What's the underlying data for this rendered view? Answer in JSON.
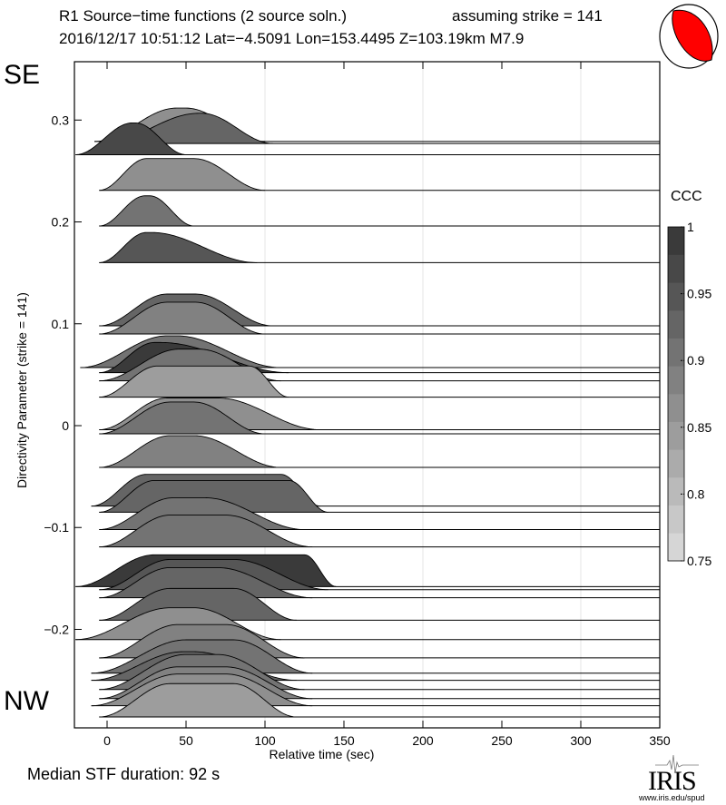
{
  "header": {
    "title": "R1 Source−time functions (2 source soln.)",
    "strike_note": "assuming strike = 141",
    "event_line": "2016/12/17 10:51:12  Lat=−4.5091 Lon=153.4495  Z=103.19km  M7.9"
  },
  "labels": {
    "top": "SE",
    "bottom": "NW"
  },
  "footer": {
    "median": "Median STF duration: 92 s",
    "logo": "IRIS",
    "logo_url_text": "www.iris.edu/spud"
  },
  "colors": {
    "beachball": "#ff0000",
    "ccc_min_gray": "#dddddd",
    "ccc_max_gray": "#333333",
    "grid": "#e4e4e4"
  },
  "chart_data": {
    "type": "area",
    "xlabel": "Relative time (sec)",
    "ylabel": "Directivity Parameter (strike = 141)",
    "xlim": [
      -20,
      350
    ],
    "ylim": [
      -0.295,
      0.33
    ],
    "xticks": [
      0,
      50,
      100,
      150,
      200,
      250,
      300,
      350
    ],
    "yticks": [
      -0.2,
      -0.1,
      0,
      0.1,
      0.2,
      0.3
    ],
    "ytick_labels": [
      "−0.2",
      "−0.1",
      "0",
      "0.1",
      "0.2",
      "0.3"
    ],
    "grid_x": [
      100,
      200,
      300
    ],
    "colorbar": {
      "title": "CCC",
      "range": [
        0.75,
        1
      ],
      "ticks": [
        "0.75",
        "0.8",
        "0.85",
        "0.9",
        "0.95",
        "1"
      ],
      "steps": 12,
      "placement": "right"
    },
    "traces": [
      {
        "d": 0.279,
        "onset": -8,
        "plateau": [
          44,
          50
        ],
        "end": 100,
        "amp": 1.05,
        "ccc": 0.87
      },
      {
        "d": 0.277,
        "onset": -3,
        "plateau": [
          58,
          60
        ],
        "end": 105,
        "amp": 0.95,
        "ccc": 0.93
      },
      {
        "d": 0.266,
        "onset": -20,
        "plateau": [
          16,
          18
        ],
        "end": 50,
        "amp": 1.0,
        "ccc": 0.96
      },
      {
        "d": 0.231,
        "onset": -5,
        "plateau": [
          25,
          55
        ],
        "end": 100,
        "amp": 1.0,
        "ccc": 0.87
      },
      {
        "d": 0.196,
        "onset": -5,
        "plateau": [
          24,
          27
        ],
        "end": 55,
        "amp": 0.95,
        "ccc": 0.9
      },
      {
        "d": 0.16,
        "onset": -5,
        "plateau": [
          25,
          28
        ],
        "end": 95,
        "amp": 0.95,
        "ccc": 0.95
      },
      {
        "d": 0.098,
        "onset": -5,
        "plateau": [
          38,
          56
        ],
        "end": 105,
        "amp": 1.0,
        "ccc": 0.93
      },
      {
        "d": 0.09,
        "onset": -5,
        "plateau": [
          38,
          56
        ],
        "end": 100,
        "amp": 1.0,
        "ccc": 0.88
      },
      {
        "d": 0.057,
        "onset": -17,
        "plateau": [
          38,
          44
        ],
        "end": 110,
        "amp": 1.0,
        "ccc": 0.9
      },
      {
        "d": 0.052,
        "onset": -5,
        "plateau": [
          30,
          34
        ],
        "end": 115,
        "amp": 0.95,
        "ccc": 0.98
      },
      {
        "d": 0.044,
        "onset": -5,
        "plateau": [
          46,
          58
        ],
        "end": 110,
        "amp": 1.0,
        "ccc": 0.9
      },
      {
        "d": 0.028,
        "onset": -5,
        "plateau": [
          32,
          90
        ],
        "end": 115,
        "amp": 0.98,
        "ccc": 0.85
      },
      {
        "d": -0.004,
        "onset": -5,
        "plateau": [
          38,
          70
        ],
        "end": 135,
        "amp": 1.0,
        "ccc": 0.87
      },
      {
        "d": -0.008,
        "onset": -5,
        "plateau": [
          40,
          55
        ],
        "end": 100,
        "amp": 1.0,
        "ccc": 0.9
      },
      {
        "d": -0.041,
        "onset": -5,
        "plateau": [
          40,
          55
        ],
        "end": 110,
        "amp": 1.0,
        "ccc": 0.88
      },
      {
        "d": -0.079,
        "onset": -10,
        "plateau": [
          25,
          110
        ],
        "end": 135,
        "amp": 1.0,
        "ccc": 0.93
      },
      {
        "d": -0.085,
        "onset": -5,
        "plateau": [
          30,
          115
        ],
        "end": 140,
        "amp": 1.0,
        "ccc": 0.93
      },
      {
        "d": -0.102,
        "onset": -5,
        "plateau": [
          42,
          62
        ],
        "end": 125,
        "amp": 1.0,
        "ccc": 0.9
      },
      {
        "d": -0.119,
        "onset": -5,
        "plateau": [
          40,
          75
        ],
        "end": 130,
        "amp": 1.0,
        "ccc": 0.9
      },
      {
        "d": -0.158,
        "onset": -20,
        "plateau": [
          30,
          125
        ],
        "end": 145,
        "amp": 1.0,
        "ccc": 0.99
      },
      {
        "d": -0.161,
        "onset": -5,
        "plateau": [
          40,
          80
        ],
        "end": 140,
        "amp": 0.95,
        "ccc": 0.95
      },
      {
        "d": -0.169,
        "onset": -5,
        "plateau": [
          40,
          70
        ],
        "end": 130,
        "amp": 0.95,
        "ccc": 0.92
      },
      {
        "d": -0.191,
        "onset": -5,
        "plateau": [
          40,
          80
        ],
        "end": 120,
        "amp": 1.0,
        "ccc": 0.93
      },
      {
        "d": -0.21,
        "onset": -20,
        "plateau": [
          40,
          55
        ],
        "end": 110,
        "amp": 1.0,
        "ccc": 0.87
      },
      {
        "d": -0.228,
        "onset": -5,
        "plateau": [
          45,
          75
        ],
        "end": 125,
        "amp": 1.05,
        "ccc": 0.88
      },
      {
        "d": -0.243,
        "onset": -10,
        "plateau": [
          50,
          80
        ],
        "end": 130,
        "amp": 1.05,
        "ccc": 0.9
      },
      {
        "d": -0.25,
        "onset": -10,
        "plateau": [
          48,
          55
        ],
        "end": 120,
        "amp": 0.9,
        "ccc": 0.92
      },
      {
        "d": -0.259,
        "onset": -5,
        "plateau": [
          50,
          70
        ],
        "end": 125,
        "amp": 1.1,
        "ccc": 0.9
      },
      {
        "d": -0.268,
        "onset": -5,
        "plateau": [
          45,
          75
        ],
        "end": 130,
        "amp": 1.0,
        "ccc": 0.88
      },
      {
        "d": -0.275,
        "onset": -10,
        "plateau": [
          45,
          75
        ],
        "end": 130,
        "amp": 1.0,
        "ccc": 0.86
      },
      {
        "d": -0.286,
        "onset": -5,
        "plateau": [
          40,
          80
        ],
        "end": 120,
        "amp": 1.05,
        "ccc": 0.85
      }
    ]
  }
}
